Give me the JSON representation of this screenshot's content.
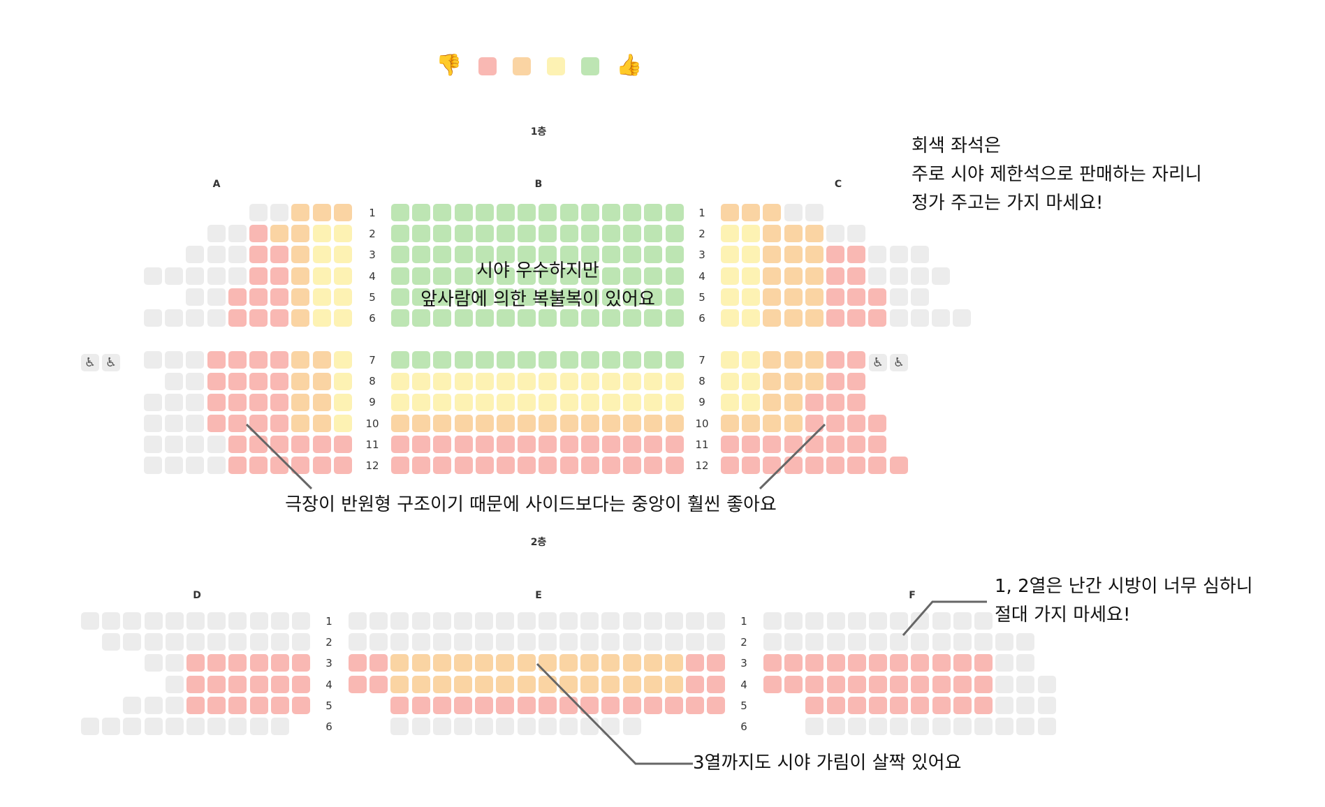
{
  "legend": {
    "bad_icon": "thumbs-down-icon",
    "good_icon": "thumbs-up-icon",
    "colors": [
      "#f9b8b3",
      "#fad4a3",
      "#fdf2b3",
      "#bde5b3"
    ]
  },
  "seat_colors": {
    "R": "#f9b8b3",
    "O": "#fad4a3",
    "Y": "#fdf2b3",
    "G": "#bde5b3",
    "X": "#ececec"
  },
  "floors": {
    "floor1": "1층",
    "floor2": "2층"
  },
  "sections": {
    "A": "A",
    "B": "B",
    "C": "C",
    "D": "D",
    "E": "E",
    "F": "F"
  },
  "floor1": {
    "rows_upper": [
      "1",
      "2",
      "3",
      "4",
      "5",
      "6"
    ],
    "rows_lower": [
      "7",
      "8",
      "9",
      "10",
      "11",
      "12"
    ],
    "A": [
      "     XXOOO",
      "   XXROOYY",
      "  XXXRROYY",
      "XXXXXRROYY",
      "  XXRRROYY",
      "XXXXRRROYY",
      "          ",
      "XXXRRRROOY",
      " XXRRRROOY",
      "XXXRRRROOY",
      "XXXRRRROOY",
      "XXXXRRRRRR",
      "XXXXRRRRRR"
    ],
    "B": [
      "GGGGGGGGGGGGGG",
      "GGGGGGGGGGGGGG",
      "GGGGGGGGGGGGGG",
      "GGGGGGGGGGGGGG",
      "GGGGGGGGGGGGGG",
      "GGGGGGGGGGGGGG",
      "              ",
      "GGGGGGGGGGGGGG",
      "YYYYYYYYYYYYYY",
      "YYYYYYYYYYYYYY",
      "OOOOOOOOOOOOOO",
      "RRRRRRRRRRRRRR",
      "RRRRRRRRRRRRRR"
    ],
    "C": [
      "OOOXX     ",
      "YYOOOXX   ",
      "YYOOORRXXX",
      "YYOOORRXXXX",
      "YYOOORRRXX",
      "YYOOORRRXXXX",
      "          ",
      "YYOOORR   ",
      "YYOOORR   ",
      "YYOORRR   ",
      "OOOORRRR  ",
      "RRRRRRRR  ",
      "RRRRRRRRR "
    ],
    "wheelchair_rows": [
      "7"
    ]
  },
  "floor2": {
    "rows": [
      "1",
      "2",
      "3",
      "4",
      "5",
      "6"
    ],
    "D": [
      "XXXXXXXXXXX",
      " XXXXXXXXXX",
      "   XXRRRRRR",
      "    XRRRRRR",
      "  XXXRRRRRR",
      "XXXXXXXXXX "
    ],
    "E": [
      "XXXXXXXXXXXXXXXXXX",
      "XXXXXXXXXXXXXXXXXX",
      "RROOOOOOOOOOOOOORR",
      "RROOOOOOOOOOOOOORR",
      "  RRRRRRRRRRRRRRRR",
      "  XXXXXXXXXXXX    "
    ],
    "F": [
      "XXXXXXXXXXX",
      "XXXXXXXXXXXXX",
      "RRRRRRRRRRRXX",
      "RRRRRRRRRRRXXX",
      "  RRRRRRRRRXXX",
      "  XXXXXXXXXXXX"
    ]
  },
  "notes": {
    "gray_seats": [
      "회색 좌석은",
      "주로 시야 제한석으로 판매하는 자리니",
      "정가 주고는 가지 마세요!"
    ],
    "center_b": [
      "시야 우수하지만",
      "앞사람에 의한 복불복이 있어요"
    ],
    "side": "극장이 반원형 구조이기 때문에 사이드보다는 중앙이 훨씬 좋아요",
    "f_rows": [
      "1, 2열은 난간 시방이 너무 심하니",
      "절대 가지 마세요!"
    ],
    "e_row3": "3열까지도 시야 가림이 살짝 있어요"
  }
}
